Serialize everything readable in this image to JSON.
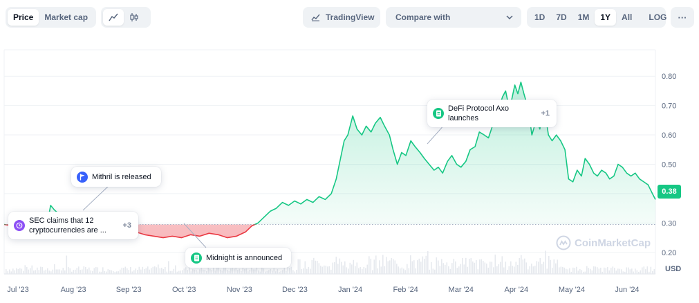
{
  "toolbar": {
    "metric_tabs": [
      {
        "label": "Price",
        "active": true
      },
      {
        "label": "Market cap",
        "active": false
      }
    ],
    "chart_types": [
      {
        "icon": "line-chart-icon",
        "active": true
      },
      {
        "icon": "candlestick-icon",
        "active": false
      }
    ],
    "tradingview_label": "TradingView",
    "compare_label": "Compare with",
    "ranges": [
      {
        "label": "1D",
        "active": false
      },
      {
        "label": "7D",
        "active": false
      },
      {
        "label": "1M",
        "active": false
      },
      {
        "label": "1Y",
        "active": true
      },
      {
        "label": "All",
        "active": false
      }
    ],
    "log_label": "LOG",
    "more_label": "···"
  },
  "price_tag": "0.38",
  "currency_label": "USD",
  "watermark": "CoinMarketCap",
  "events": [
    {
      "text_lines": [
        "DeFi Protocol Axo",
        "launches"
      ],
      "count": "+1",
      "badge_color": "#16c784",
      "icon": "document-icon"
    },
    {
      "text_lines": [
        "Mithril is released"
      ],
      "count": "",
      "badge_color": "#3861fb",
      "icon": "flag-icon"
    },
    {
      "text_lines": [
        "SEC claims that 12",
        "cryptocurrencies are ..."
      ],
      "count": "+3",
      "badge_color": "#8c4ff5",
      "icon": "clock-icon"
    },
    {
      "text_lines": [
        "Midnight is announced"
      ],
      "count": "",
      "badge_color": "#16c784",
      "icon": "document-icon"
    }
  ],
  "colors": {
    "up": "#16c784",
    "down": "#ea3943",
    "grid": "#eff2f5",
    "axis_text": "#58667e"
  },
  "chart_data": {
    "type": "area",
    "x_tick_labels": [
      "Jul '23",
      "Aug '23",
      "Sep '23",
      "Oct '23",
      "Nov '23",
      "Dec '23",
      "Jan '24",
      "Feb '24",
      "Mar '24",
      "Apr '24",
      "May '24",
      "Jun '24"
    ],
    "y_ticks": [
      0.2,
      0.3,
      0.4,
      0.5,
      0.6,
      0.7,
      0.8
    ],
    "ylim": [
      0.15,
      0.89
    ],
    "baseline": 0.295,
    "current_price": 0.38,
    "grid": true,
    "series": [
      {
        "points": [
          [
            0.0,
            0.295
          ],
          [
            1.5,
            0.29
          ],
          [
            3.0,
            0.28
          ],
          [
            4.5,
            0.28
          ],
          [
            6.0,
            0.285
          ],
          [
            7.0,
            0.29
          ],
          [
            7.6,
            0.36
          ],
          [
            8.2,
            0.345
          ],
          [
            9.0,
            0.33
          ],
          [
            10.0,
            0.32
          ],
          [
            11.0,
            0.325
          ],
          [
            12.0,
            0.315
          ],
          [
            13.0,
            0.32
          ],
          [
            14.0,
            0.31
          ],
          [
            15.0,
            0.305
          ],
          [
            16.0,
            0.3
          ],
          [
            17.5,
            0.29
          ],
          [
            18.5,
            0.28
          ],
          [
            20.0,
            0.275
          ],
          [
            21.5,
            0.27
          ],
          [
            23.0,
            0.26
          ],
          [
            24.5,
            0.255
          ],
          [
            26.0,
            0.25
          ],
          [
            27.5,
            0.255
          ],
          [
            29.0,
            0.25
          ],
          [
            30.5,
            0.26
          ],
          [
            32.0,
            0.255
          ],
          [
            33.5,
            0.265
          ],
          [
            35.0,
            0.26
          ],
          [
            36.5,
            0.25
          ],
          [
            38.0,
            0.255
          ],
          [
            39.5,
            0.27
          ],
          [
            40.5,
            0.29
          ],
          [
            41.5,
            0.3
          ],
          [
            42.5,
            0.32
          ],
          [
            43.5,
            0.34
          ],
          [
            44.5,
            0.35
          ],
          [
            45.5,
            0.37
          ],
          [
            46.5,
            0.36
          ],
          [
            47.5,
            0.375
          ],
          [
            48.5,
            0.365
          ],
          [
            49.5,
            0.38
          ],
          [
            50.5,
            0.37
          ],
          [
            51.5,
            0.39
          ],
          [
            52.5,
            0.38
          ],
          [
            53.5,
            0.4
          ],
          [
            54.3,
            0.45
          ],
          [
            55.0,
            0.52
          ],
          [
            55.6,
            0.58
          ],
          [
            56.2,
            0.6
          ],
          [
            57.0,
            0.665
          ],
          [
            57.7,
            0.62
          ],
          [
            58.5,
            0.6
          ],
          [
            59.2,
            0.63
          ],
          [
            60.0,
            0.61
          ],
          [
            60.7,
            0.64
          ],
          [
            61.5,
            0.66
          ],
          [
            62.2,
            0.63
          ],
          [
            63.0,
            0.6
          ],
          [
            63.6,
            0.55
          ],
          [
            64.3,
            0.5
          ],
          [
            65.0,
            0.54
          ],
          [
            65.7,
            0.53
          ],
          [
            66.5,
            0.58
          ],
          [
            67.2,
            0.56
          ],
          [
            68.0,
            0.54
          ],
          [
            68.7,
            0.52
          ],
          [
            69.5,
            0.5
          ],
          [
            70.3,
            0.48
          ],
          [
            71.0,
            0.49
          ],
          [
            71.7,
            0.47
          ],
          [
            72.5,
            0.51
          ],
          [
            73.2,
            0.53
          ],
          [
            74.0,
            0.5
          ],
          [
            74.7,
            0.49
          ],
          [
            75.5,
            0.51
          ],
          [
            76.2,
            0.55
          ],
          [
            77.0,
            0.56
          ],
          [
            77.7,
            0.61
          ],
          [
            78.5,
            0.6
          ],
          [
            79.2,
            0.59
          ],
          [
            80.0,
            0.64
          ],
          [
            80.7,
            0.68
          ],
          [
            81.5,
            0.73
          ],
          [
            82.0,
            0.75
          ],
          [
            82.5,
            0.7
          ],
          [
            83.0,
            0.72
          ],
          [
            83.5,
            0.77
          ],
          [
            84.0,
            0.74
          ],
          [
            84.5,
            0.78
          ],
          [
            85.0,
            0.74
          ],
          [
            85.7,
            0.69
          ],
          [
            86.3,
            0.6
          ],
          [
            87.0,
            0.65
          ],
          [
            87.6,
            0.62
          ],
          [
            88.3,
            0.7
          ],
          [
            89.0,
            0.6
          ],
          [
            89.6,
            0.58
          ],
          [
            90.3,
            0.6
          ],
          [
            91.0,
            0.58
          ],
          [
            91.7,
            0.55
          ],
          [
            92.3,
            0.45
          ],
          [
            93.0,
            0.44
          ],
          [
            93.7,
            0.48
          ],
          [
            94.4,
            0.46
          ],
          [
            95.0,
            0.52
          ],
          [
            95.7,
            0.5
          ],
          [
            96.4,
            0.47
          ],
          [
            97.0,
            0.46
          ],
          [
            97.7,
            0.48
          ],
          [
            98.4,
            0.47
          ],
          [
            99.0,
            0.45
          ],
          [
            99.7,
            0.46
          ],
          [
            100.4,
            0.5
          ],
          [
            101.1,
            0.49
          ],
          [
            101.8,
            0.47
          ],
          [
            102.5,
            0.46
          ],
          [
            103.2,
            0.47
          ],
          [
            103.9,
            0.45
          ],
          [
            104.6,
            0.44
          ],
          [
            105.3,
            0.43
          ],
          [
            106.0,
            0.4
          ],
          [
            106.5,
            0.38
          ]
        ]
      }
    ]
  }
}
